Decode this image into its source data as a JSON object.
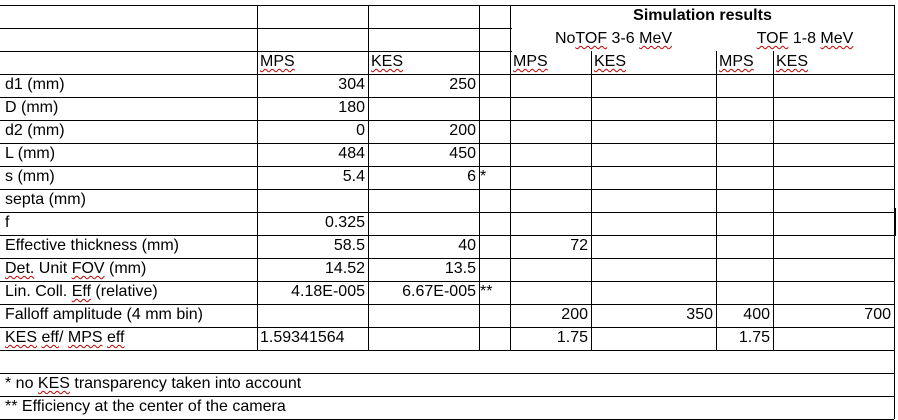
{
  "sim": {
    "title": "Simulation results",
    "group_notof": {
      "prefix": "No",
      "squiggle": "TOF",
      "rest": " 3-6 ",
      "unit": "MeV"
    },
    "group_tof": {
      "squiggle": "TOF",
      "rest": " 1-8 ",
      "unit": "MeV"
    }
  },
  "head": {
    "mps": "MPS",
    "kes": "KES",
    "sim_mps": "MPS",
    "sim_kes": "KES",
    "tof_mps": "MPS",
    "tof_kes": "KES"
  },
  "rows": {
    "d1": {
      "label": "d1 (mm)",
      "mps": "304",
      "kes": "250"
    },
    "D": {
      "label": "D (mm)",
      "mps": "180"
    },
    "d2": {
      "label": "d2 (mm)",
      "mps": "0",
      "kes": "200"
    },
    "L": {
      "label": "L (mm)",
      "mps": "484",
      "kes": "450"
    },
    "s": {
      "label": "s (mm)",
      "mps": "5.4",
      "kes": "6",
      "note": "*"
    },
    "septa": {
      "label": "septa (mm)"
    },
    "f": {
      "label": "f",
      "mps": "0.325"
    },
    "eff_thick": {
      "label": "Effective thickness (mm)",
      "mps": "58.5",
      "kes": "40",
      "sim1": "72"
    },
    "fov": {
      "label_a": "Det.",
      "label_b": " Unit ",
      "label_c": "FOV",
      "label_d": " (mm)",
      "mps": "14.52",
      "kes": "13.5"
    },
    "coll": {
      "label_a": "Lin. Coll. ",
      "label_b": "Eff",
      "label_c": " (relative)",
      "mps": "4.18E-005",
      "kes": "6.67E-005",
      "note": "**"
    },
    "falloff": {
      "label": "Falloff amplitude (4 mm bin)",
      "sim1": "200",
      "sim2": "350",
      "sim3": "400",
      "sim4": "700"
    },
    "ratio": {
      "label_a": "KES",
      "label_b": " ",
      "label_c": "eff",
      "label_d": "/ ",
      "label_e": "MPS",
      "label_f": " ",
      "label_g": "eff",
      "mps": "1.59341564",
      "sim1": "1.75",
      "sim3": "1.75"
    }
  },
  "footnotes": {
    "note1_a": "* no ",
    "note1_b": "KES",
    "note1_c": " transparency taken into account",
    "note2": "** Efficiency at the center of the camera"
  }
}
